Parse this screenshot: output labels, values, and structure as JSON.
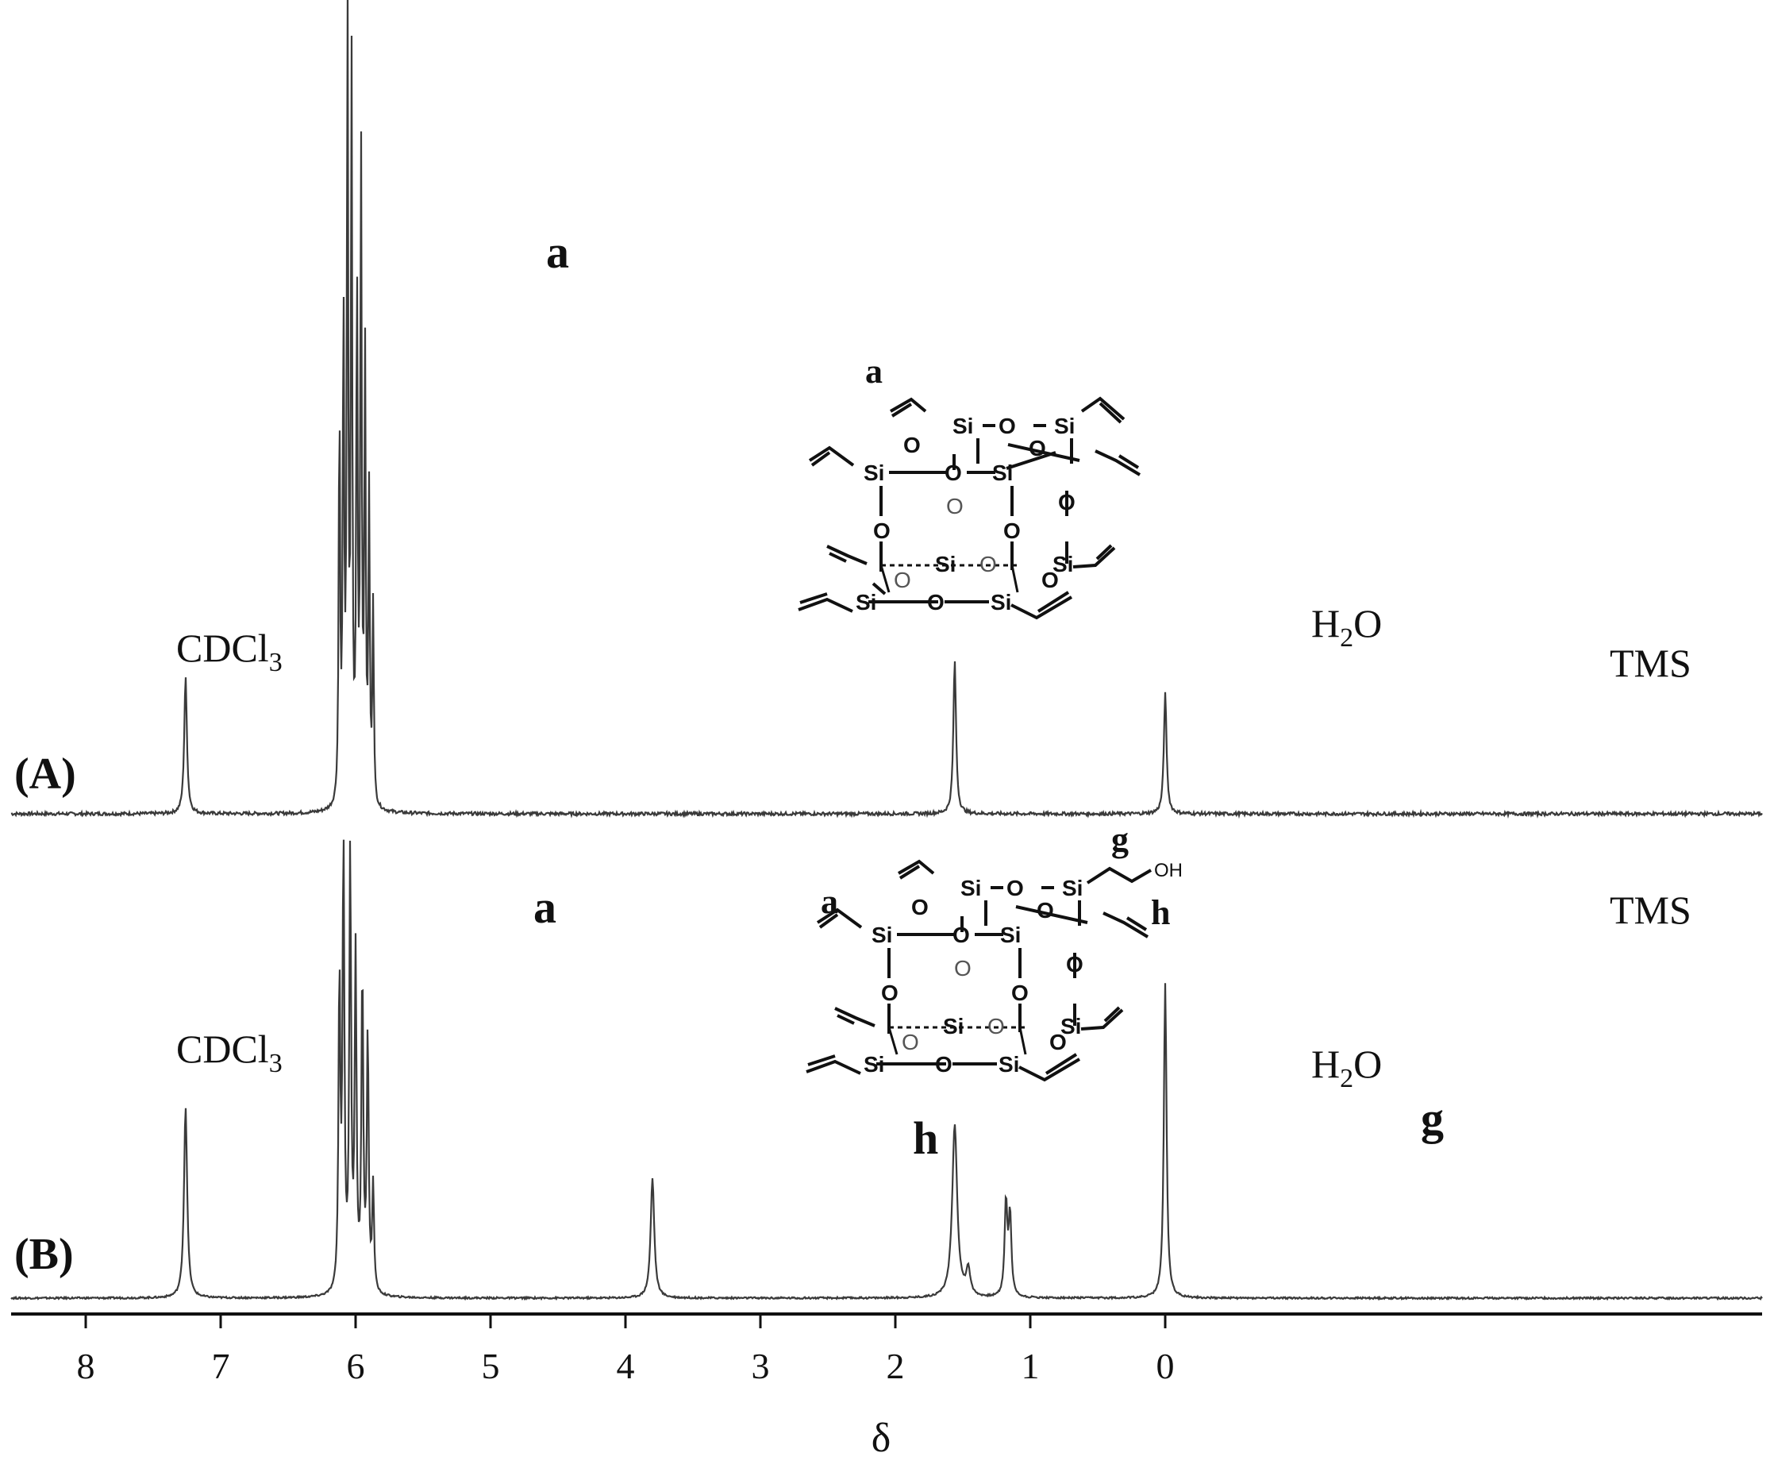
{
  "chart_data": {
    "type": "line",
    "xlabel": "δ",
    "xlim": [
      8.55,
      -0.5
    ],
    "x_direction": "reversed",
    "x_ticks": [
      8,
      7,
      6,
      5,
      4,
      3,
      2,
      1,
      0
    ],
    "x_tick_labels": [
      "8",
      "7",
      "6",
      "5",
      "4",
      "3",
      "2",
      "1",
      "0"
    ],
    "grid": false,
    "series": [
      {
        "name": "(A)",
        "peaks": [
          {
            "shift": 7.26,
            "height": 0.17,
            "width": 0.012,
            "label": "CDCl3"
          },
          {
            "shift": 6.12,
            "height": 0.5,
            "width": 0.006
          },
          {
            "shift": 6.09,
            "height": 0.62,
            "width": 0.006
          },
          {
            "shift": 6.06,
            "height": 1.0,
            "width": 0.006
          },
          {
            "shift": 6.03,
            "height": 0.91,
            "width": 0.006
          },
          {
            "shift": 5.99,
            "height": 0.65,
            "width": 0.006
          },
          {
            "shift": 5.96,
            "height": 0.82,
            "width": 0.006
          },
          {
            "shift": 5.93,
            "height": 0.55,
            "width": 0.006
          },
          {
            "shift": 5.9,
            "height": 0.38,
            "width": 0.006
          },
          {
            "shift": 5.87,
            "height": 0.25,
            "width": 0.006
          },
          {
            "shift": 1.56,
            "height": 0.19,
            "width": 0.012,
            "label": "H2O"
          },
          {
            "shift": 0.0,
            "height": 0.15,
            "width": 0.012,
            "label": "TMS"
          }
        ],
        "annotations": [
          {
            "label": "a",
            "shift": 5.7
          }
        ]
      },
      {
        "name": "(B)",
        "peaks": [
          {
            "shift": 7.26,
            "height": 0.43,
            "width": 0.014,
            "label": "CDCl3"
          },
          {
            "shift": 6.12,
            "height": 0.7,
            "width": 0.008
          },
          {
            "shift": 6.09,
            "height": 1.0,
            "width": 0.008
          },
          {
            "shift": 6.04,
            "height": 0.98,
            "width": 0.008
          },
          {
            "shift": 6.0,
            "height": 0.75,
            "width": 0.008
          },
          {
            "shift": 5.95,
            "height": 0.72,
            "width": 0.008
          },
          {
            "shift": 5.91,
            "height": 0.58,
            "width": 0.008
          },
          {
            "shift": 5.87,
            "height": 0.24,
            "width": 0.008
          },
          {
            "shift": 3.8,
            "height": 0.27,
            "width": 0.016,
            "label": "h"
          },
          {
            "shift": 1.56,
            "height": 0.39,
            "width": 0.022,
            "label": "H2O"
          },
          {
            "shift": 1.46,
            "height": 0.06,
            "width": 0.018
          },
          {
            "shift": 1.18,
            "height": 0.21,
            "width": 0.012,
            "label": "g"
          },
          {
            "shift": 1.15,
            "height": 0.18,
            "width": 0.012
          },
          {
            "shift": 0.0,
            "height": 0.71,
            "width": 0.012,
            "label": "TMS"
          }
        ],
        "annotations": [
          {
            "label": "a",
            "shift": 5.7
          }
        ]
      }
    ]
  },
  "labels": {
    "spectrum_a": "(A)",
    "spectrum_b": "(B)",
    "cdcl3": "CDCl",
    "cdcl3_sub": "3",
    "h2o_h": "H",
    "h2o_sub": "2",
    "h2o_o": "O",
    "tms": "TMS",
    "a": "a",
    "g": "g",
    "h": "h",
    "si": "Si",
    "o": "O",
    "oh": "OH"
  },
  "colors": {
    "line": "#3a3a3a",
    "text": "#111111",
    "axis": "#111111"
  }
}
